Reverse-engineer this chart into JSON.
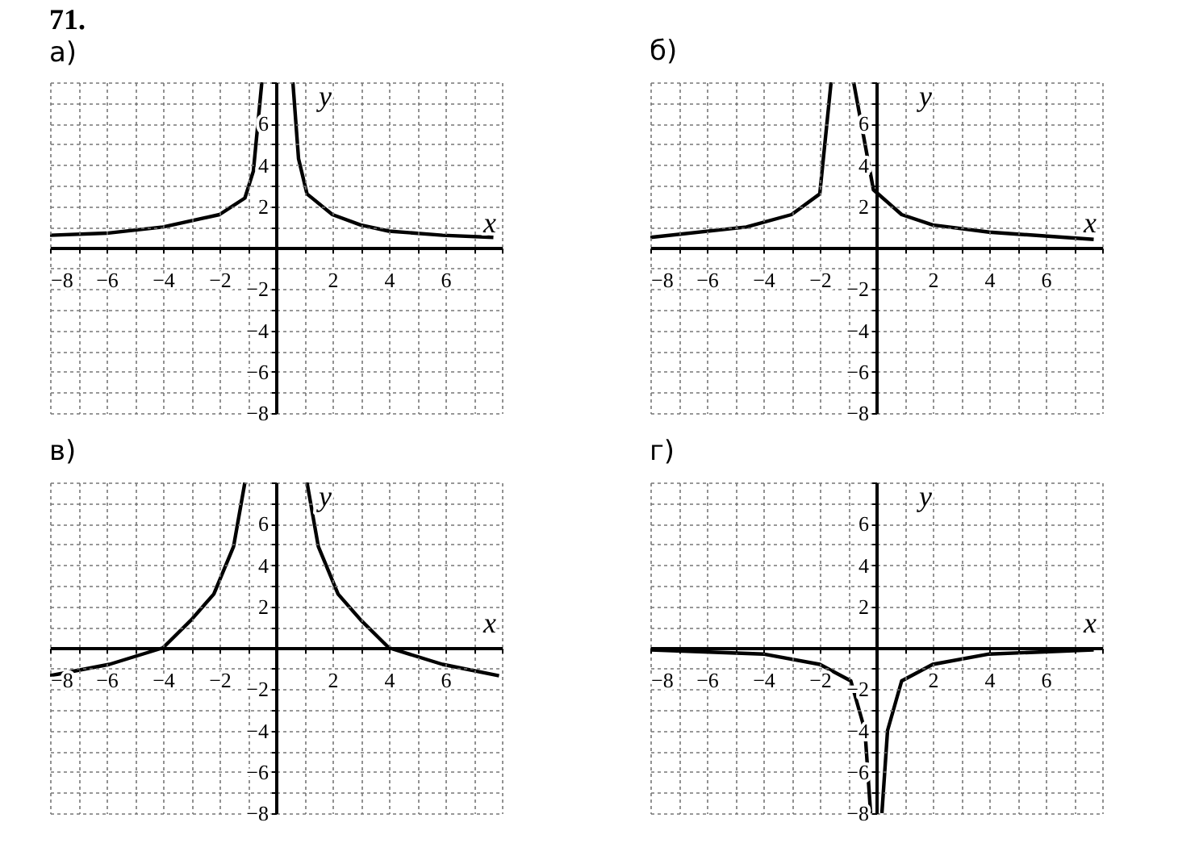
{
  "chart_data": [
    {
      "type": "line",
      "title": "71.",
      "subtitle": "а)",
      "xlabel": "x",
      "ylabel": "y",
      "xlim": [
        -8,
        8
      ],
      "ylim": [
        -8,
        8
      ],
      "grid": true,
      "xticks": [
        -8,
        {
          "value": -7,
          "label": null
        },
        -6,
        {
          "value": -5,
          "label": null
        },
        -4,
        {
          "value": -3,
          "label": null
        },
        -2,
        {
          "value": -1,
          "label": null
        },
        {
          "value": 0,
          "label": null
        },
        {
          "value": 1,
          "label": null
        },
        2,
        {
          "value": 3,
          "label": null
        },
        4,
        {
          "value": 5,
          "label": null
        },
        6,
        {
          "value": 7,
          "label": null
        },
        {
          "value": 8,
          "label": null
        }
      ],
      "yticks": [
        -8,
        {
          "value": -7,
          "label": null
        },
        -6,
        {
          "value": -5,
          "label": null
        },
        -4,
        {
          "value": -3,
          "label": null
        },
        -2,
        {
          "value": -1,
          "label": null
        },
        {
          "value": 0,
          "label": null
        },
        {
          "value": 1,
          "label": null
        },
        2,
        {
          "value": 3,
          "label": null
        },
        4,
        {
          "value": 5,
          "label": null
        },
        6,
        {
          "value": 7,
          "label": null
        },
        {
          "value": 8,
          "label": null
        }
      ],
      "series": [
        {
          "color": "#000000",
          "x": [
            -8,
            -6,
            -4,
            -2,
            -1.1,
            -0.8,
            -0.5
          ],
          "values": [
            0.6,
            0.7,
            1.0,
            1.6,
            2.4,
            3.7,
            8
          ]
        },
        {
          "color": "#000000",
          "x": [
            0.6,
            0.8,
            1.1,
            2,
            3,
            4,
            5.9,
            7.7
          ],
          "values": [
            8,
            4.3,
            2.6,
            1.6,
            1.1,
            0.8,
            0.6,
            0.5
          ]
        }
      ]
    },
    {
      "type": "line",
      "subtitle": "б)",
      "xlabel": "x",
      "ylabel": "y",
      "xlim": [
        -8,
        8
      ],
      "ylim": [
        -8,
        8
      ],
      "grid": true,
      "xticks": [
        -8,
        {
          "value": -7,
          "label": null
        },
        -6,
        {
          "value": -5,
          "label": null
        },
        -4,
        {
          "value": -3,
          "label": null
        },
        -2,
        {
          "value": -1,
          "label": null
        },
        {
          "value": 0,
          "label": null
        },
        {
          "value": 1,
          "label": null
        },
        2,
        {
          "value": 3,
          "label": null
        },
        4,
        {
          "value": 5,
          "label": null
        },
        6,
        {
          "value": 7,
          "label": null
        },
        {
          "value": 8,
          "label": null
        }
      ],
      "yticks": [
        -8,
        {
          "value": -7,
          "label": null
        },
        -6,
        {
          "value": -5,
          "label": null
        },
        -4,
        {
          "value": -3,
          "label": null
        },
        -2,
        {
          "value": -1,
          "label": null
        },
        {
          "value": 0,
          "label": null
        },
        {
          "value": 1,
          "label": null
        },
        2,
        {
          "value": 3,
          "label": null
        },
        4,
        {
          "value": 5,
          "label": null
        },
        6,
        {
          "value": 7,
          "label": null
        },
        {
          "value": 8,
          "label": null
        }
      ],
      "series": [
        {
          "color": "#000000",
          "x": [
            -8,
            -4.6,
            -3,
            -2,
            -1.6
          ],
          "values": [
            0.5,
            1.0,
            1.6,
            2.6,
            8
          ]
        },
        {
          "color": "#000000",
          "x": [
            -0.8,
            -0.1,
            0.9,
            2,
            4,
            7.7
          ],
          "values": [
            8,
            2.8,
            1.6,
            1.1,
            0.75,
            0.4
          ]
        }
      ]
    },
    {
      "type": "line",
      "subtitle": "в)",
      "xlabel": "x",
      "ylabel": "y",
      "xlim": [
        -8,
        8
      ],
      "ylim": [
        -8,
        8
      ],
      "grid": true,
      "xticks": [
        -8,
        {
          "value": -7,
          "label": null
        },
        -6,
        {
          "value": -5,
          "label": null
        },
        -4,
        {
          "value": -3,
          "label": null
        },
        -2,
        {
          "value": -1,
          "label": null
        },
        {
          "value": 0,
          "label": null
        },
        {
          "value": 1,
          "label": null
        },
        2,
        {
          "value": 3,
          "label": null
        },
        4,
        {
          "value": 5,
          "label": null
        },
        6,
        {
          "value": 7,
          "label": null
        },
        {
          "value": 8,
          "label": null
        }
      ],
      "yticks": [
        -8,
        {
          "value": -7,
          "label": null
        },
        -6,
        {
          "value": -5,
          "label": null
        },
        -4,
        {
          "value": -3,
          "label": null
        },
        -2,
        {
          "value": -1,
          "label": null
        },
        {
          "value": 0,
          "label": null
        },
        {
          "value": 1,
          "label": null
        },
        2,
        {
          "value": 3,
          "label": null
        },
        4,
        {
          "value": 5,
          "label": null
        },
        6,
        {
          "value": 7,
          "label": null
        },
        {
          "value": 8,
          "label": null
        }
      ],
      "series": [
        {
          "color": "#000000",
          "x": [
            -8,
            -5.9,
            -4,
            -3,
            -2.2,
            -1.5,
            -1.1
          ],
          "values": [
            -1.35,
            -0.8,
            0,
            1.35,
            2.6,
            4.9,
            8
          ]
        },
        {
          "color": "#000000",
          "x": [
            1.1,
            1.5,
            2.2,
            3,
            4,
            5.9,
            7.9
          ],
          "values": [
            8,
            4.9,
            2.6,
            1.35,
            0,
            -0.8,
            -1.35
          ]
        }
      ]
    },
    {
      "type": "line",
      "subtitle": "г)",
      "xlabel": "x",
      "ylabel": "y",
      "xlim": [
        -8,
        8
      ],
      "ylim": [
        -8,
        8
      ],
      "grid": true,
      "xticks": [
        -8,
        {
          "value": -7,
          "label": null
        },
        -6,
        {
          "value": -5,
          "label": null
        },
        -4,
        {
          "value": -3,
          "label": null
        },
        -2,
        {
          "value": -1,
          "label": null
        },
        {
          "value": 0,
          "label": null
        },
        {
          "value": 1,
          "label": null
        },
        2,
        {
          "value": 3,
          "label": null
        },
        4,
        {
          "value": 5,
          "label": null
        },
        6,
        {
          "value": 7,
          "label": null
        },
        {
          "value": 8,
          "label": null
        }
      ],
      "yticks": [
        -8,
        {
          "value": -7,
          "label": null
        },
        -6,
        {
          "value": -5,
          "label": null
        },
        -4,
        {
          "value": -3,
          "label": null
        },
        -2,
        {
          "value": -1,
          "label": null
        },
        {
          "value": 0,
          "label": null
        },
        {
          "value": 1,
          "label": null
        },
        2,
        {
          "value": 3,
          "label": null
        },
        4,
        {
          "value": 5,
          "label": null
        },
        6,
        {
          "value": 7,
          "label": null
        },
        {
          "value": 8,
          "label": null
        }
      ],
      "series": [
        {
          "color": "#000000",
          "x": [
            -8,
            -4,
            -2,
            -0.9,
            -0.4,
            -0.2
          ],
          "values": [
            -0.1,
            -0.3,
            -0.8,
            -1.6,
            -4,
            -8
          ]
        },
        {
          "color": "#000000",
          "x": [
            0.2,
            0.4,
            0.9,
            2,
            4,
            7.7
          ],
          "values": [
            -8,
            -4,
            -1.6,
            -0.8,
            -0.3,
            -0.1
          ]
        }
      ]
    }
  ]
}
